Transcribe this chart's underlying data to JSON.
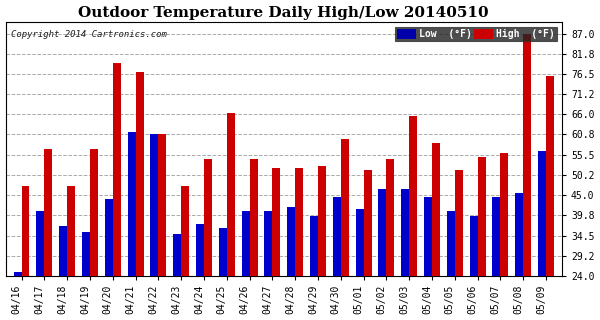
{
  "title": "Outdoor Temperature Daily High/Low 20140510",
  "copyright": "Copyright 2014 Cartronics.com",
  "legend_low": "Low  (°F)",
  "legend_high": "High  (°F)",
  "dates": [
    "04/16",
    "04/17",
    "04/18",
    "04/19",
    "04/20",
    "04/21",
    "04/22",
    "04/23",
    "04/24",
    "04/25",
    "04/26",
    "04/27",
    "04/28",
    "04/29",
    "04/30",
    "05/01",
    "05/02",
    "05/03",
    "05/04",
    "05/05",
    "05/06",
    "05/07",
    "05/08",
    "05/09"
  ],
  "highs": [
    47.5,
    57.0,
    47.5,
    57.0,
    79.5,
    77.0,
    61.0,
    47.5,
    54.5,
    66.5,
    54.5,
    52.0,
    52.0,
    52.5,
    59.5,
    51.5,
    54.5,
    65.5,
    58.5,
    51.5,
    55.0,
    56.0,
    87.0,
    76.0
  ],
  "lows": [
    25.0,
    41.0,
    37.0,
    35.5,
    44.0,
    61.5,
    61.0,
    35.0,
    37.5,
    36.5,
    41.0,
    41.0,
    42.0,
    39.5,
    44.5,
    41.5,
    46.5,
    46.5,
    44.5,
    41.0,
    39.5,
    44.5,
    45.5,
    56.5
  ],
  "high_color": "#cc0000",
  "low_color": "#0000cc",
  "bg_color": "#ffffff",
  "grid_color": "#aaaaaa",
  "ylim_min": 24.0,
  "ylim_max": 90.0,
  "yticks": [
    24.0,
    29.2,
    34.5,
    39.8,
    45.0,
    50.2,
    55.5,
    60.8,
    66.0,
    71.2,
    76.5,
    81.8,
    87.0
  ],
  "title_fontsize": 11,
  "tick_fontsize": 7,
  "bar_width": 0.35,
  "legend_low_bg": "#0000aa",
  "legend_high_bg": "#cc0000",
  "legend_text_color": "#ffffff"
}
